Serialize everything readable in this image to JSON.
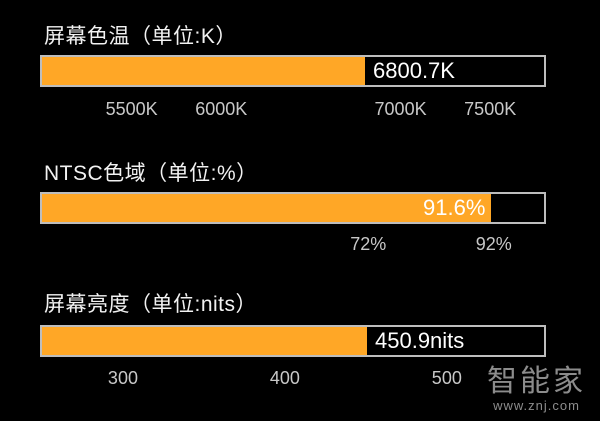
{
  "colors": {
    "bar_fill": "#FFA726",
    "background": "#000000",
    "track_border": "#BDBDBD",
    "value_on_bar": "#FFFFFF",
    "value_off_bar": "#FFFFFF"
  },
  "chart_data": [
    {
      "type": "bar",
      "orientation": "horizontal",
      "title": "屏幕色温（单位:K）",
      "value": 6800.7,
      "value_label": "6800.7K",
      "xlim": [
        5000,
        7800
      ],
      "ticks": [
        {
          "value": 5500,
          "label": "5500K"
        },
        {
          "value": 6000,
          "label": "6000K"
        },
        {
          "value": 7000,
          "label": "7000K"
        },
        {
          "value": 7500,
          "label": "7500K"
        }
      ]
    },
    {
      "type": "bar",
      "orientation": "horizontal",
      "title": "NTSC色域（单位:%）",
      "value": 91.6,
      "value_label": "91.6%",
      "xlim": [
        20,
        100
      ],
      "ticks": [
        {
          "value": 72,
          "label": "72%"
        },
        {
          "value": 92,
          "label": "92%"
        }
      ]
    },
    {
      "type": "bar",
      "orientation": "horizontal",
      "title": "屏幕亮度（单位:nits）",
      "value": 450.9,
      "value_label": "450.9nits",
      "xlim": [
        250,
        560
      ],
      "ticks": [
        {
          "value": 300,
          "label": "300"
        },
        {
          "value": 400,
          "label": "400"
        },
        {
          "value": 500,
          "label": "500"
        }
      ]
    }
  ],
  "watermark": {
    "main": "智能家",
    "sub": "www.znj.com"
  }
}
